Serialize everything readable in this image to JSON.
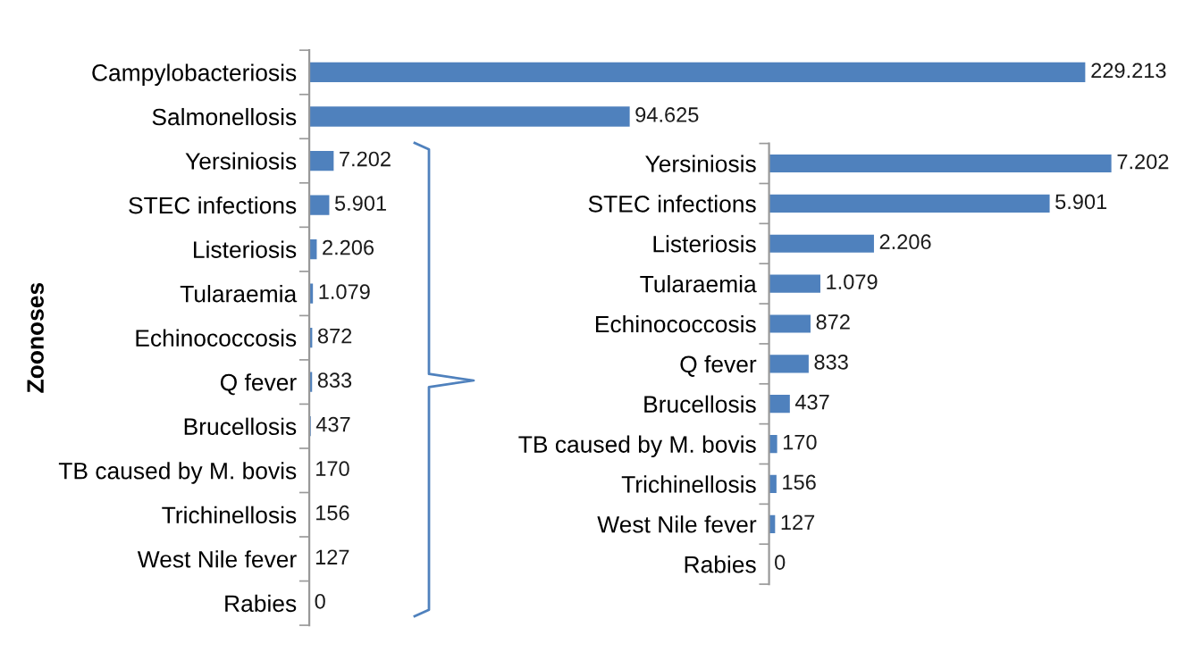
{
  "chart_data": [
    {
      "type": "bar",
      "orientation": "horizontal",
      "ylabel": "Zoonoses",
      "color": "#4f81bd",
      "categories": [
        "Campylobacteriosis",
        "Salmonellosis",
        "Yersiniosis",
        "STEC infections",
        "Listeriosis",
        "Tularaemia",
        "Echinococcosis",
        "Q fever",
        "Brucellosis",
        "TB caused by M. bovis",
        "Trichinellosis",
        "West Nile fever",
        "Rabies"
      ],
      "values": [
        229213,
        94625,
        7202,
        5901,
        2206,
        1079,
        872,
        833,
        437,
        170,
        156,
        127,
        0
      ],
      "value_labels": [
        "229.213",
        "94.625",
        "7.202",
        "5.901",
        "2.206",
        "1.079",
        "872",
        "833",
        "437",
        "170",
        "156",
        "127",
        "0"
      ],
      "tick_labels": "y"
    },
    {
      "type": "bar",
      "orientation": "horizontal",
      "color": "#4f81bd",
      "categories": [
        "Yersiniosis",
        "STEC infections",
        "Listeriosis",
        "Tularaemia",
        "Echinococcosis",
        "Q fever",
        "Brucellosis",
        "TB caused by M. bovis",
        "Trichinellosis",
        "West Nile fever",
        "Rabies"
      ],
      "values": [
        7202,
        5901,
        2206,
        1079,
        872,
        833,
        437,
        170,
        156,
        127,
        0
      ],
      "value_labels": [
        "7.202",
        "5.901",
        "2.206",
        "1.079",
        "872",
        "833",
        "437",
        "170",
        "156",
        "127",
        "0"
      ],
      "tick_labels": "y"
    }
  ]
}
